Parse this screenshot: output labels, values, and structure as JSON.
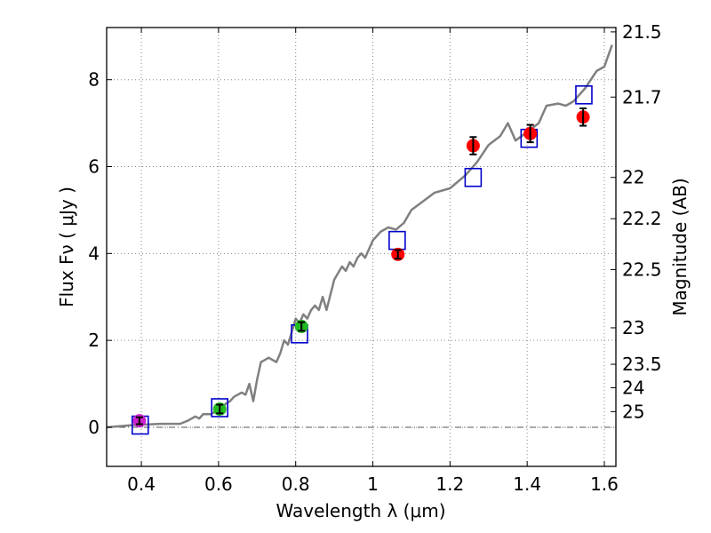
{
  "chart_data": {
    "type": "scatter",
    "title": "",
    "xlabel": "Wavelength  λ (μm)",
    "ylabel": "Flux  Fν  ( μJy )",
    "ylabel_right": "Magnitude (AB)",
    "xlim": [
      0.31,
      1.63
    ],
    "ylim": [
      -0.9,
      9.2
    ],
    "grid": true,
    "x_ticks": [
      0.4,
      0.6,
      0.8,
      1.0,
      1.2,
      1.4,
      1.6
    ],
    "x_tick_labels": [
      "0.4",
      "0.6",
      "0.8",
      "1",
      "1.2",
      "1.4",
      "1.6"
    ],
    "y_ticks": [
      0,
      2,
      4,
      6,
      8
    ],
    "y_tick_labels": [
      "0",
      "2",
      "4",
      "6",
      "8"
    ],
    "right_ticks": [
      {
        "label": "21.5",
        "flux": 9.1
      },
      {
        "label": "21.7",
        "flux": 7.6
      },
      {
        "label": "22",
        "flux": 5.75
      },
      {
        "label": "22.2",
        "flux": 4.8
      },
      {
        "label": "22.5",
        "flux": 3.63
      },
      {
        "label": "23",
        "flux": 2.29
      },
      {
        "label": "23.5",
        "flux": 1.45
      },
      {
        "label": "24",
        "flux": 0.91
      },
      {
        "label": "25",
        "flux": 0.36
      }
    ],
    "colors": {
      "model": "#808080",
      "photometry_red": "#ff0000",
      "photometry_green": "#22bb22",
      "photometry_magenta": "#cc22cc",
      "model_box": "#0000cc",
      "errorbar": "#000000",
      "grid": "#888888",
      "zero_line": "#555555"
    },
    "series": [
      {
        "name": "model spectrum",
        "kind": "line",
        "x": [
          0.31,
          0.38,
          0.45,
          0.5,
          0.52,
          0.54,
          0.55,
          0.56,
          0.58,
          0.6,
          0.62,
          0.63,
          0.64,
          0.65,
          0.66,
          0.67,
          0.68,
          0.69,
          0.7,
          0.71,
          0.72,
          0.73,
          0.75,
          0.76,
          0.77,
          0.78,
          0.79,
          0.8,
          0.81,
          0.82,
          0.83,
          0.84,
          0.85,
          0.86,
          0.87,
          0.88,
          0.9,
          0.92,
          0.93,
          0.94,
          0.95,
          0.96,
          0.97,
          0.98,
          1.0,
          1.02,
          1.04,
          1.06,
          1.08,
          1.1,
          1.13,
          1.16,
          1.2,
          1.24,
          1.27,
          1.3,
          1.33,
          1.35,
          1.37,
          1.4,
          1.43,
          1.45,
          1.48,
          1.5,
          1.52,
          1.55,
          1.58,
          1.6,
          1.62
        ],
        "y": [
          0.0,
          0.05,
          0.08,
          0.08,
          0.15,
          0.25,
          0.2,
          0.3,
          0.3,
          0.4,
          0.55,
          0.6,
          0.7,
          0.75,
          0.8,
          0.75,
          1.0,
          0.6,
          1.1,
          1.5,
          1.55,
          1.6,
          1.5,
          1.7,
          2.0,
          1.9,
          2.2,
          2.5,
          2.4,
          2.6,
          2.5,
          2.7,
          2.8,
          2.7,
          3.0,
          2.7,
          3.4,
          3.7,
          3.6,
          3.8,
          3.7,
          3.9,
          4.0,
          3.9,
          4.3,
          4.5,
          4.6,
          4.55,
          4.7,
          5.0,
          5.2,
          5.4,
          5.5,
          5.8,
          6.1,
          6.5,
          6.7,
          7.0,
          6.6,
          6.8,
          7.0,
          7.4,
          7.45,
          7.4,
          7.5,
          7.8,
          8.2,
          8.3,
          8.8
        ]
      },
      {
        "name": "observed photometry",
        "kind": "errorbar",
        "points": [
          {
            "x": 0.395,
            "y": 0.15,
            "err": 0.08,
            "color": "#cc22cc"
          },
          {
            "x": 0.603,
            "y": 0.42,
            "err": 0.1,
            "color": "#22bb22"
          },
          {
            "x": 0.815,
            "y": 2.32,
            "err": 0.1,
            "color": "#22bb22"
          },
          {
            "x": 1.065,
            "y": 3.98,
            "err": 0.1,
            "color": "#ff0000"
          },
          {
            "x": 1.26,
            "y": 6.48,
            "err": 0.2,
            "color": "#ff0000"
          },
          {
            "x": 1.408,
            "y": 6.76,
            "err": 0.2,
            "color": "#ff0000"
          },
          {
            "x": 1.545,
            "y": 7.14,
            "err": 0.2,
            "color": "#ff0000"
          }
        ]
      },
      {
        "name": "model synthetic photometry",
        "kind": "open-square",
        "points": [
          {
            "x": 0.397,
            "y": 0.05
          },
          {
            "x": 0.603,
            "y": 0.45
          },
          {
            "x": 0.81,
            "y": 2.15
          },
          {
            "x": 1.063,
            "y": 4.3
          },
          {
            "x": 1.26,
            "y": 5.75
          },
          {
            "x": 1.405,
            "y": 6.65
          },
          {
            "x": 1.547,
            "y": 7.65
          }
        ]
      }
    ]
  }
}
